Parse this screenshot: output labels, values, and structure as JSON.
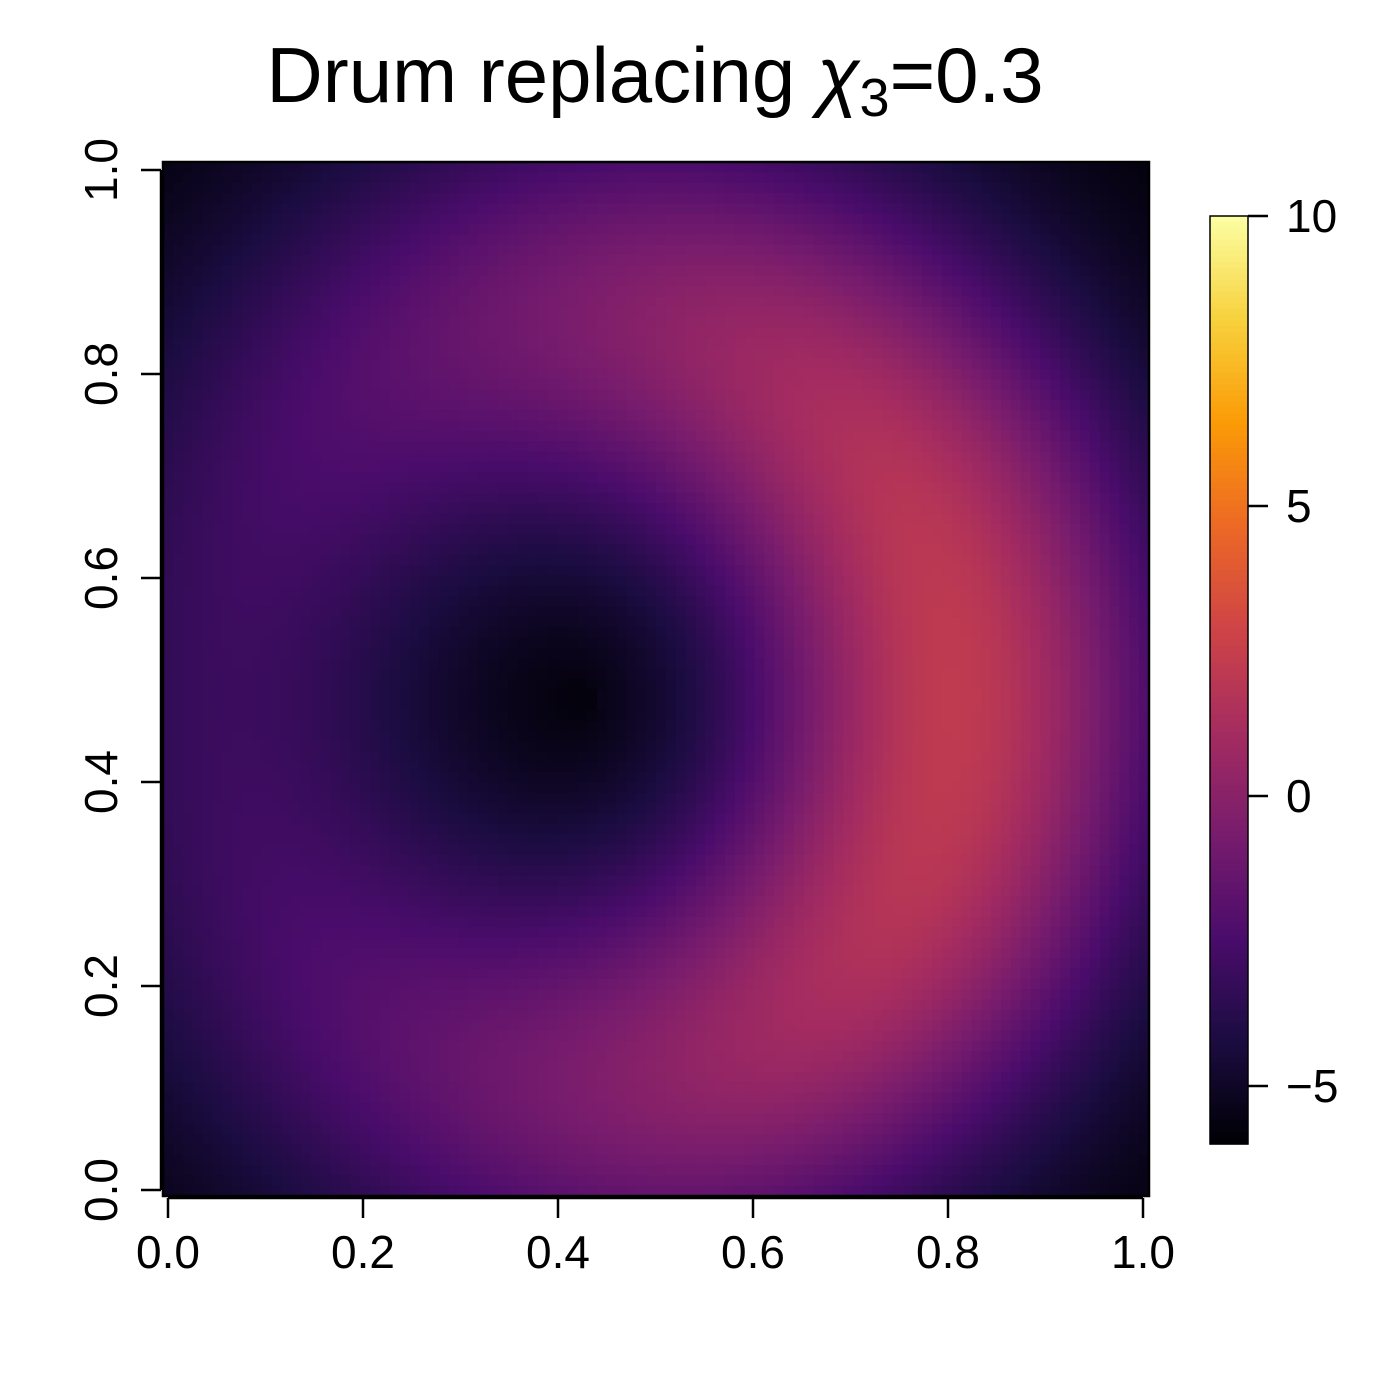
{
  "chart_data": {
    "type": "heatmap",
    "title": {
      "prefix": "Drum replacing ",
      "symbol": "χ",
      "subscript": "3",
      "suffix": "=0.3"
    },
    "xlabel": "",
    "ylabel": "",
    "xlim": [
      0.0,
      1.0
    ],
    "ylim": [
      0.0,
      1.0
    ],
    "x_ticks": [
      "0.0",
      "0.2",
      "0.4",
      "0.6",
      "0.8",
      "1.0"
    ],
    "y_ticks": [
      "0.0",
      "0.2",
      "0.4",
      "0.6",
      "0.8",
      "1.0"
    ],
    "colorbar": {
      "range": [
        -6.0,
        10.0
      ],
      "ticks": [
        -5,
        0,
        5,
        10
      ],
      "tick_labels": [
        "−5",
        "0",
        "5",
        "10"
      ],
      "colormap": "inferno",
      "color_stops": [
        "#000004",
        "#1b0c41",
        "#4a0c6b",
        "#781c6d",
        "#a52c60",
        "#cf4446",
        "#ed6925",
        "#fb9b06",
        "#f7d13d",
        "#fcffa4"
      ]
    },
    "field": {
      "description_values": "z(x,y): minimum about -6 near (0.44, 0.48); ring maximum about 2.5 near (0.85, 0.52); corners about -4",
      "center_min": {
        "x": 0.44,
        "y": 0.48,
        "z": -6.0
      },
      "ring_max": {
        "x": 0.85,
        "y": 0.52,
        "z": 2.5
      },
      "corner_value": -4.0
    },
    "grid": false,
    "legend": "colorbar-right"
  }
}
